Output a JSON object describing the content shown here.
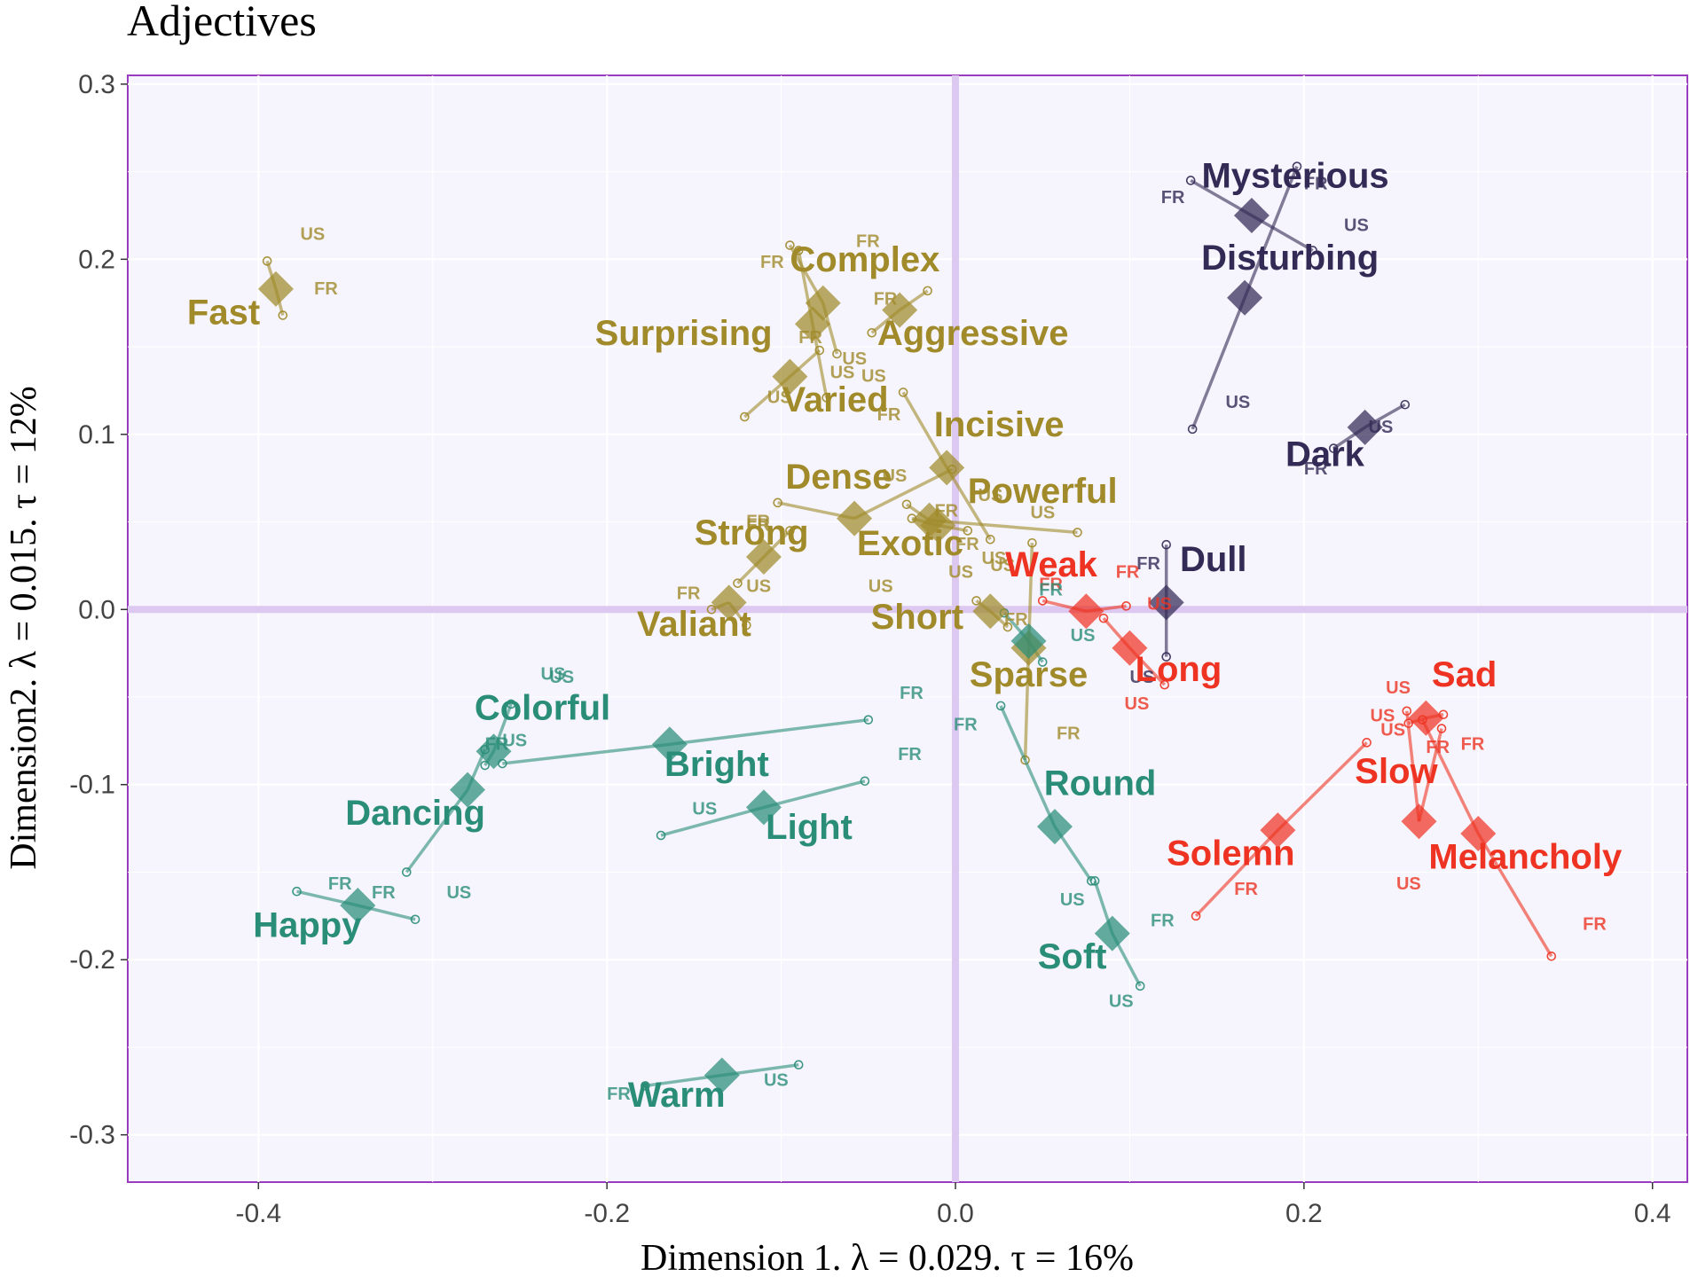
{
  "chart_data": {
    "type": "scatter",
    "title": "Adjectives",
    "xlabel": "Dimension 1.   λ = 0.029.  τ = 16%",
    "ylabel": "Dimension2.   λ = 0.015.  τ = 12%",
    "xlim": [
      -0.475,
      0.42
    ],
    "ylim": [
      -0.327,
      0.305
    ],
    "xticks": [
      -0.4,
      -0.2,
      0.0,
      0.2,
      0.4
    ],
    "xtick_labels": [
      "-0.4",
      "-0.2",
      "0.0",
      "0.2",
      "0.4"
    ],
    "yticks": [
      -0.3,
      -0.2,
      -0.1,
      0.0,
      0.1,
      0.2,
      0.3
    ],
    "ytick_labels": [
      "-0.3",
      "-0.2",
      "-0.1",
      "0.0",
      "0.1",
      "0.2",
      "0.3"
    ],
    "grid": true,
    "legend": "none",
    "colors": {
      "olive": "#a08a2a",
      "teal": "#2a8d78",
      "red": "#ee3322",
      "navy": "#332a55",
      "origin_lines": "#dcc8f0",
      "panel_bg": "#f6f5fd",
      "panel_border": "#9b3cc0"
    },
    "points": [
      {
        "label": "Fast",
        "group": "olive",
        "x": -0.39,
        "y": 0.183,
        "lx": -0.42,
        "ly": 0.163,
        "fr": [
          -0.386,
          0.168
        ],
        "fr_label": {
          "x": -0.368,
          "y": 0.18
        },
        "us": [
          -0.395,
          0.199
        ],
        "us_label": {
          "x": -0.376,
          "y": 0.211
        }
      },
      {
        "label": "Complex",
        "group": "olive",
        "x": -0.076,
        "y": 0.175,
        "lx": -0.052,
        "ly": 0.193,
        "fr": [
          -0.095,
          0.208
        ],
        "fr_label": {
          "x": -0.057,
          "y": 0.207
        },
        "us": [
          -0.068,
          0.146
        ],
        "us_label": {
          "x": -0.065,
          "y": 0.14
        }
      },
      {
        "label": "Surprising",
        "group": "olive",
        "x": -0.082,
        "y": 0.163,
        "lx": -0.156,
        "ly": 0.151,
        "fr": [
          -0.09,
          0.205
        ],
        "fr_label": {
          "x": -0.112,
          "y": 0.195
        },
        "us": [
          -0.074,
          0.121
        ],
        "us_label": {
          "x": -0.072,
          "y": 0.132
        }
      },
      {
        "label": "Aggressive",
        "group": "olive",
        "x": -0.032,
        "y": 0.171,
        "lx": 0.01,
        "ly": 0.151,
        "fr": [
          -0.016,
          0.182
        ],
        "fr_label": {
          "x": -0.047,
          "y": 0.174
        },
        "us": [
          -0.048,
          0.158
        ],
        "us_label": {
          "x": -0.054,
          "y": 0.13
        }
      },
      {
        "label": "Varied",
        "group": "olive",
        "x": -0.095,
        "y": 0.133,
        "lx": -0.069,
        "ly": 0.113,
        "fr": [
          -0.078,
          0.148
        ],
        "fr_label": {
          "x": -0.09,
          "y": 0.152
        },
        "us": [
          -0.121,
          0.11
        ],
        "us_label": {
          "x": -0.108,
          "y": 0.118
        }
      },
      {
        "label": "Incisive",
        "group": "olive",
        "x": -0.005,
        "y": 0.081,
        "lx": 0.025,
        "ly": 0.099,
        "fr": [
          -0.03,
          0.124
        ],
        "fr_label": {
          "x": -0.045,
          "y": 0.108
        },
        "us": [
          0.02,
          0.04
        ],
        "us_label": {
          "x": 0.013,
          "y": 0.062
        }
      },
      {
        "label": "Dense",
        "group": "olive",
        "x": -0.058,
        "y": 0.052,
        "lx": -0.067,
        "ly": 0.069,
        "fr": [
          -0.102,
          0.061
        ],
        "fr_label": {
          "x": -0.12,
          "y": 0.047
        },
        "us": [
          -0.002,
          0.08
        ],
        "us_label": {
          "x": -0.042,
          "y": 0.073
        }
      },
      {
        "label": "Powerful",
        "group": "olive",
        "x": -0.015,
        "y": 0.051,
        "lx": 0.05,
        "ly": 0.061,
        "fr": [
          -0.028,
          0.06
        ],
        "fr_label": {
          "x": -0.012,
          "y": 0.053
        },
        "us": [
          0.07,
          0.044
        ],
        "us_label": {
          "x": 0.043,
          "y": 0.052
        }
      },
      {
        "label": "Exotic",
        "group": "olive",
        "x": -0.01,
        "y": 0.048,
        "lx": -0.026,
        "ly": 0.031,
        "fr": [
          0.007,
          0.045
        ],
        "fr_label": {
          "x": 0.0,
          "y": 0.034
        },
        "us": [
          -0.025,
          0.052
        ],
        "us_label": {
          "x": 0.015,
          "y": 0.026
        }
      },
      {
        "label": "Strong",
        "group": "olive",
        "x": -0.11,
        "y": 0.03,
        "lx": -0.117,
        "ly": 0.037,
        "fr": [
          -0.095,
          0.045
        ],
        "fr_label": {
          "x": -0.12,
          "y": 0.045
        },
        "us": [
          -0.125,
          0.015
        ],
        "us_label": {
          "x": 0.02,
          "y": 0.022
        }
      },
      {
        "label": "Valiant",
        "group": "olive",
        "x": -0.13,
        "y": 0.004,
        "lx": -0.15,
        "ly": -0.015,
        "fr": [
          -0.14,
          0.0
        ],
        "fr_label": {
          "x": -0.16,
          "y": 0.006
        },
        "us": [
          -0.12,
          -0.009
        ],
        "us_label": {
          "x": -0.12,
          "y": 0.01
        }
      },
      {
        "label": "Short",
        "group": "olive",
        "x": 0.02,
        "y": -0.001,
        "lx": -0.022,
        "ly": -0.011,
        "fr": [
          0.012,
          0.005
        ],
        "fr_label": {
          "x": 0.028,
          "y": -0.009
        },
        "us": [
          0.03,
          -0.01
        ],
        "us_label": {
          "x": -0.05,
          "y": 0.01
        }
      },
      {
        "label": "Sparse",
        "group": "olive",
        "x": 0.042,
        "y": -0.022,
        "lx": 0.042,
        "ly": -0.044,
        "fr": [
          0.04,
          -0.086
        ],
        "fr_label": {
          "x": 0.058,
          "y": -0.074
        },
        "us": [
          0.044,
          0.038
        ],
        "us_label": {
          "x": -0.004,
          "y": 0.018
        }
      },
      {
        "label": "Mysterious",
        "group": "navy",
        "x": 0.17,
        "y": 0.225,
        "lx": 0.195,
        "ly": 0.241,
        "fr": [
          0.135,
          0.245
        ],
        "fr_label": {
          "x": 0.118,
          "y": 0.232
        },
        "us": [
          0.205,
          0.205
        ],
        "us_label": {
          "x": 0.223,
          "y": 0.216
        }
      },
      {
        "label": "Disturbing",
        "group": "navy",
        "x": 0.166,
        "y": 0.178,
        "lx": 0.192,
        "ly": 0.194,
        "fr": [
          0.196,
          0.253
        ],
        "fr_label": {
          "x": 0.2,
          "y": 0.24
        },
        "us": [
          0.136,
          0.103
        ],
        "us_label": {
          "x": 0.155,
          "y": 0.115
        }
      },
      {
        "label": "Dark",
        "group": "navy",
        "x": 0.235,
        "y": 0.104,
        "lx": 0.212,
        "ly": 0.082,
        "fr": [
          0.217,
          0.092
        ],
        "fr_label": {
          "x": 0.2,
          "y": 0.077
        },
        "us": [
          0.258,
          0.117
        ],
        "us_label": {
          "x": 0.237,
          "y": 0.101
        }
      },
      {
        "label": "Dull",
        "group": "navy",
        "x": 0.121,
        "y": 0.004,
        "lx": 0.148,
        "ly": 0.022,
        "fr": [
          0.121,
          0.037
        ],
        "fr_label": {
          "x": 0.104,
          "y": 0.023
        },
        "us": [
          0.121,
          -0.027
        ],
        "us_label": {
          "x": 0.1,
          "y": -0.042
        }
      },
      {
        "label": "Weak",
        "group": "red",
        "x": 0.075,
        "y": -0.001,
        "lx": 0.055,
        "ly": 0.019,
        "fr": [
          0.05,
          0.005
        ],
        "fr_label": {
          "x": 0.048,
          "y": 0.011
        },
        "us": [
          0.098,
          0.002
        ],
        "us_label": {
          "x": 0.11,
          "y": 0.0
        }
      },
      {
        "label": "Long",
        "group": "red",
        "x": 0.1,
        "y": -0.022,
        "lx": 0.128,
        "ly": -0.041,
        "fr": [
          0.085,
          -0.005
        ],
        "fr_label": {
          "x": 0.092,
          "y": 0.018
        },
        "us": [
          0.12,
          -0.043
        ],
        "us_label": {
          "x": 0.097,
          "y": -0.057
        }
      },
      {
        "label": "Sad",
        "group": "red",
        "x": 0.27,
        "y": -0.062,
        "lx": 0.292,
        "ly": -0.044,
        "fr": [
          0.28,
          -0.06
        ],
        "fr_label": {
          "x": 0.27,
          "y": -0.082
        },
        "us": [
          0.26,
          -0.065
        ],
        "us_label": {
          "x": 0.247,
          "y": -0.048
        }
      },
      {
        "label": "Slow",
        "group": "red",
        "x": 0.266,
        "y": -0.121,
        "lx": 0.253,
        "ly": -0.099,
        "fr": [
          0.259,
          -0.058
        ],
        "fr_label": {
          "x": 0.29,
          "y": -0.08
        },
        "us": [
          0.279,
          -0.068
        ],
        "us_label": {
          "x": 0.238,
          "y": -0.064
        }
      },
      {
        "label": "Solemn",
        "group": "red",
        "x": 0.185,
        "y": -0.126,
        "lx": 0.158,
        "ly": -0.146,
        "fr": [
          0.138,
          -0.175
        ],
        "fr_label": {
          "x": 0.16,
          "y": -0.163
        },
        "us": [
          0.236,
          -0.076
        ],
        "us_label": {
          "x": 0.244,
          "y": -0.072
        }
      },
      {
        "label": "Melancholy",
        "group": "red",
        "x": 0.3,
        "y": -0.128,
        "lx": 0.327,
        "ly": -0.148,
        "fr": [
          0.342,
          -0.198
        ],
        "fr_label": {
          "x": 0.36,
          "y": -0.183
        },
        "us": [
          0.268,
          -0.063
        ],
        "us_label": {
          "x": 0.253,
          "y": -0.16
        }
      },
      {
        "label": "Colorful",
        "group": "teal",
        "x": -0.265,
        "y": -0.081,
        "lx": -0.237,
        "ly": -0.063,
        "fr": [
          -0.27,
          -0.089
        ],
        "fr_label": {
          "x": -0.27,
          "y": -0.08
        },
        "us": [
          -0.255,
          -0.054
        ],
        "us_label": {
          "x": -0.233,
          "y": -0.042
        }
      },
      {
        "label": "Bright",
        "group": "teal",
        "x": -0.164,
        "y": -0.077,
        "lx": -0.137,
        "ly": -0.095,
        "fr": [
          -0.05,
          -0.063
        ],
        "fr_label": {
          "x": -0.032,
          "y": -0.051
        },
        "us": [
          -0.26,
          -0.088
        ],
        "us_label": {
          "x": -0.238,
          "y": -0.04
        }
      },
      {
        "label": "Dancing",
        "group": "teal",
        "x": -0.28,
        "y": -0.103,
        "lx": -0.31,
        "ly": -0.123,
        "fr": [
          -0.315,
          -0.15
        ],
        "fr_label": {
          "x": -0.36,
          "y": -0.16
        },
        "us": [
          -0.27,
          -0.08
        ],
        "us_label": {
          "x": -0.26,
          "y": -0.078
        }
      },
      {
        "label": "Light",
        "group": "teal",
        "x": -0.11,
        "y": -0.113,
        "lx": -0.084,
        "ly": -0.131,
        "fr": [
          -0.052,
          -0.098
        ],
        "fr_label": {
          "x": -0.033,
          "y": -0.086
        },
        "us": [
          -0.169,
          -0.129
        ],
        "us_label": {
          "x": -0.151,
          "y": -0.117
        }
      },
      {
        "label": "Happy",
        "group": "teal",
        "x": -0.343,
        "y": -0.169,
        "lx": -0.372,
        "ly": -0.187,
        "fr": [
          -0.378,
          -0.161
        ],
        "fr_label": {
          "x": -0.335,
          "y": -0.165
        },
        "us": [
          -0.31,
          -0.177
        ],
        "us_label": {
          "x": -0.292,
          "y": -0.165
        }
      },
      {
        "label": "Round",
        "group": "teal",
        "x": 0.057,
        "y": -0.124,
        "lx": 0.083,
        "ly": -0.106,
        "fr": [
          0.026,
          -0.055
        ],
        "fr_label": {
          "x": -0.001,
          "y": -0.069
        },
        "us": [
          0.078,
          -0.155
        ],
        "us_label": {
          "x": 0.06,
          "y": -0.169
        }
      },
      {
        "label": "Soft",
        "group": "teal",
        "x": 0.09,
        "y": -0.185,
        "lx": 0.067,
        "ly": -0.205,
        "fr": [
          0.106,
          -0.215
        ],
        "fr_label": {
          "x": 0.112,
          "y": -0.181
        },
        "us": [
          0.08,
          -0.155
        ],
        "us_label": {
          "x": 0.088,
          "y": -0.227
        }
      },
      {
        "label": "Warm",
        "group": "teal",
        "x": -0.134,
        "y": -0.266,
        "lx": -0.16,
        "ly": -0.284,
        "fr": [
          -0.178,
          -0.272
        ],
        "fr_label": {
          "x": -0.2,
          "y": -0.28
        },
        "us": [
          -0.09,
          -0.26
        ],
        "us_label": {
          "x": -0.11,
          "y": -0.272
        }
      },
      {
        "label": "",
        "group": "teal",
        "x": 0.042,
        "y": -0.018,
        "lx": 0.0,
        "ly": 0.0,
        "fr": [
          0.028,
          -0.002
        ],
        "fr_label": {
          "x": 0.048,
          "y": 0.008
        },
        "us": [
          0.05,
          -0.03
        ],
        "us_label": {
          "x": 0.066,
          "y": -0.018
        }
      }
    ]
  }
}
